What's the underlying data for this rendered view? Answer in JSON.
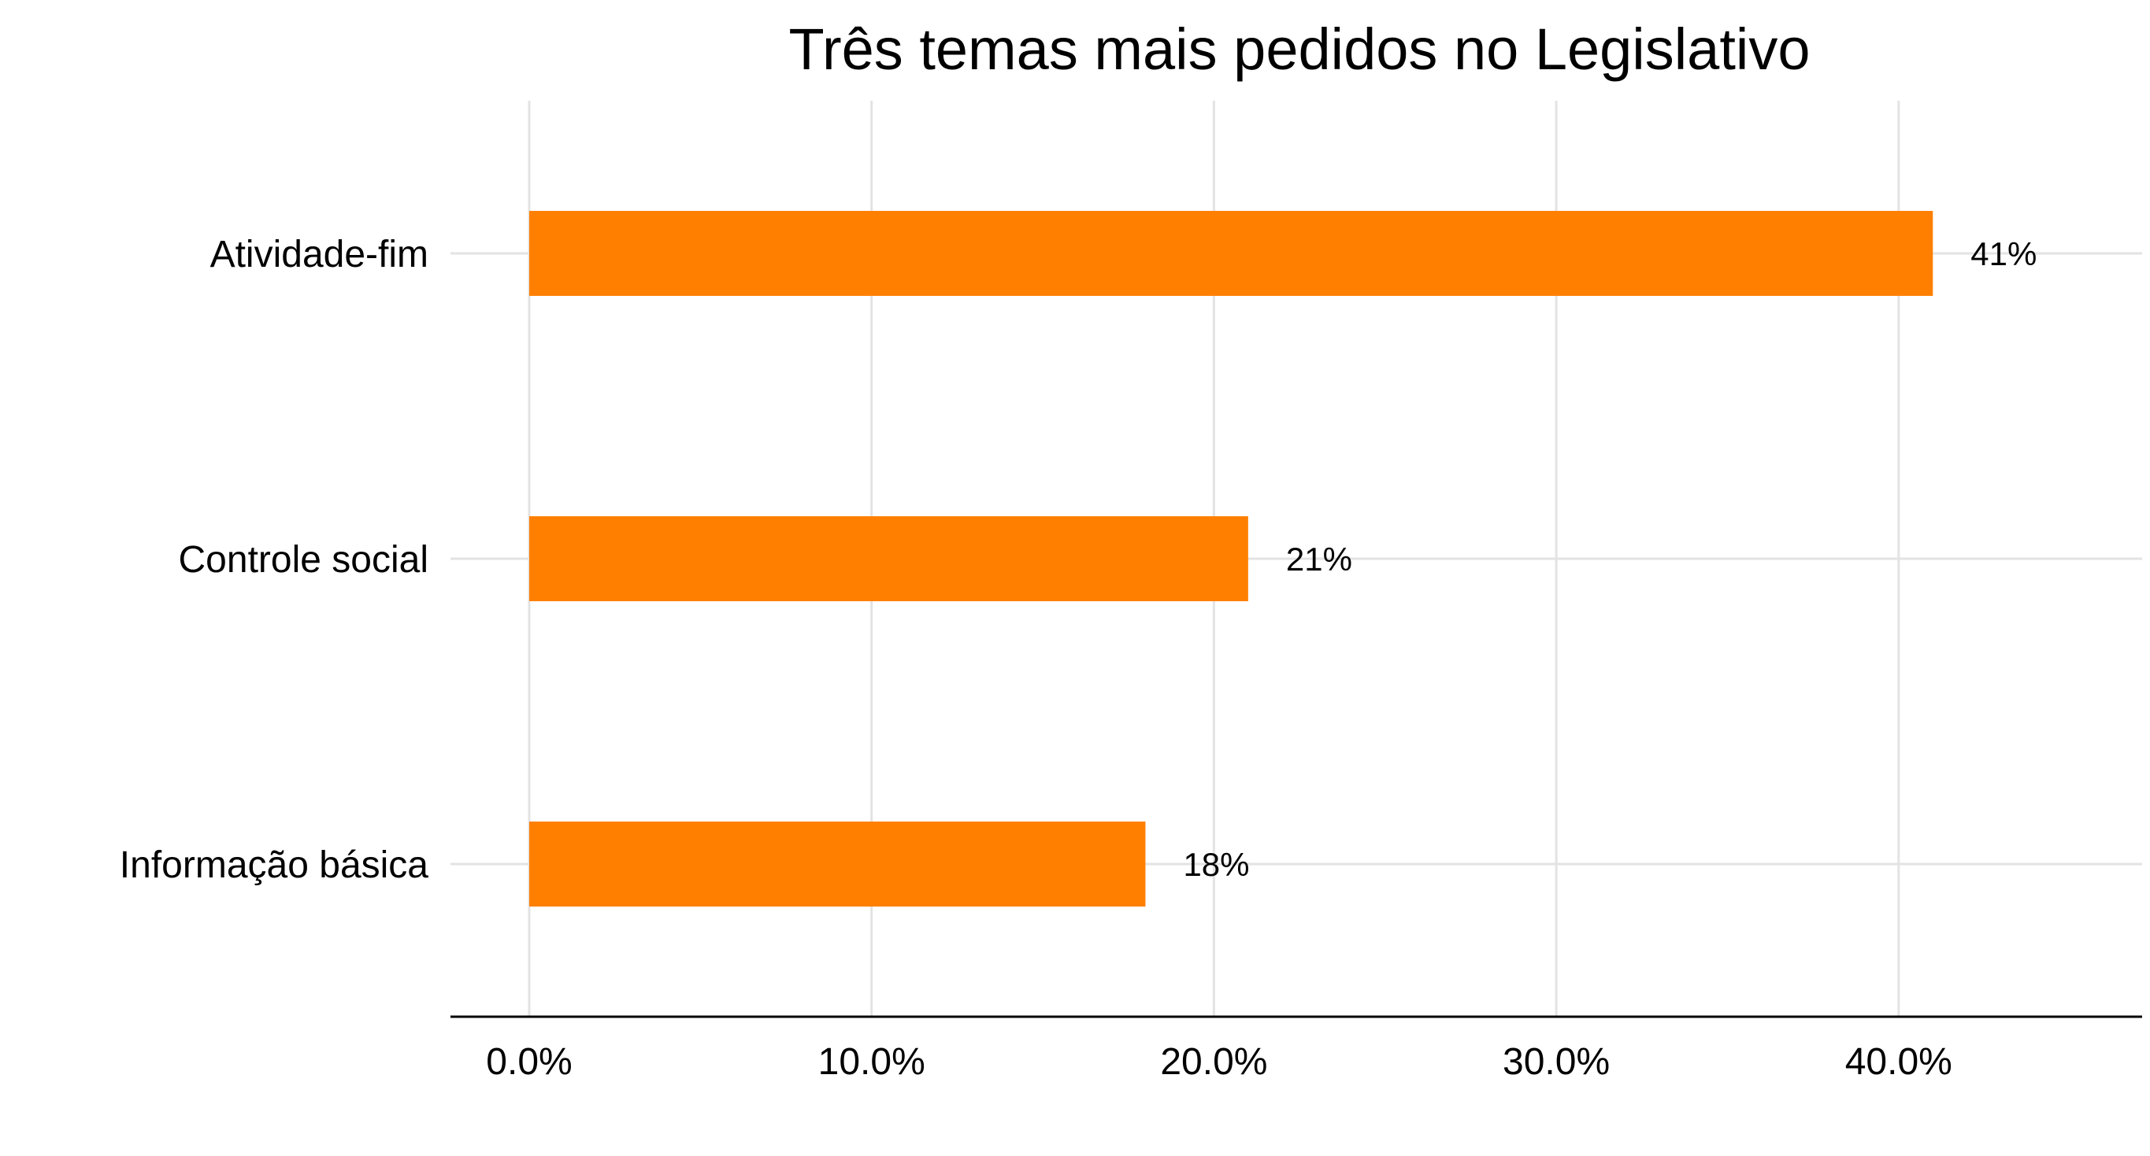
{
  "chart_data": {
    "type": "bar",
    "orientation": "horizontal",
    "title": "Três temas mais pedidos no Legislativo",
    "xlabel": "",
    "ylabel": "",
    "categories": [
      "Atividade-fim",
      "Controle social",
      "Informação básica"
    ],
    "values": [
      41,
      21,
      18
    ],
    "value_labels": [
      "41%",
      "21%",
      "18%"
    ],
    "x_ticks": [
      0,
      10,
      20,
      30,
      40
    ],
    "x_tick_labels": [
      "0.0%",
      "10.0%",
      "20.0%",
      "30.0%",
      "40.0%"
    ],
    "xlim": [
      -2.2,
      47.2
    ],
    "grid": true,
    "legend": "none",
    "colors": {
      "bar": "#ff8000",
      "grid": "#e3e3e3",
      "axis": "#000000",
      "text": "#000000"
    }
  }
}
